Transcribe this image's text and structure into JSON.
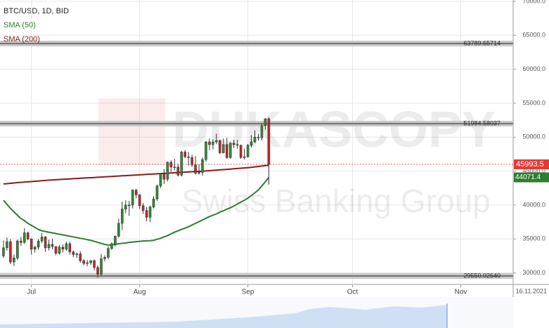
{
  "chart_data": {
    "type": "candlestick",
    "title": "BTC/USD, 1D, BID",
    "open": [
      32500,
      33700,
      34600,
      31600,
      32200,
      34700,
      34500,
      35900,
      35000,
      33500,
      33800,
      34700,
      35300,
      33700,
      34200,
      33900,
      32900,
      33800,
      33500,
      34300,
      33100,
      32700,
      32800,
      31800,
      31400,
      31500,
      31800,
      30800,
      29800,
      32100,
      32300,
      33600,
      34300,
      35400,
      37300,
      39400,
      40000,
      40000,
      42200,
      41500,
      39900,
      39200,
      38200,
      39700,
      40900,
      42800,
      44600,
      43800,
      46300,
      45600,
      45600,
      44400,
      47800,
      47100,
      47000,
      45900,
      44700,
      44800,
      46700,
      49300,
      48900,
      49300,
      49500,
      47700,
      48900,
      47000,
      49100,
      48900,
      48800,
      47000,
      47100,
      48800,
      49300,
      50000,
      49900,
      51700,
      52700
    ],
    "high": [
      34800,
      35200,
      35000,
      32700,
      34900,
      35300,
      36600,
      36100,
      35100,
      34000,
      35000,
      35900,
      35400,
      34900,
      35000,
      33900,
      34100,
      34200,
      34600,
      34600,
      33300,
      33000,
      33200,
      32000,
      31900,
      31900,
      32000,
      31100,
      32800,
      32600,
      33900,
      34500,
      35500,
      38000,
      40500,
      40700,
      40600,
      42300,
      42400,
      41600,
      40300,
      39700,
      39900,
      41300,
      43000,
      44700,
      45300,
      46400,
      46600,
      46800,
      46100,
      48000,
      48100,
      47800,
      47400,
      47200,
      46000,
      47000,
      49400,
      49800,
      49700,
      50500,
      49600,
      49800,
      49900,
      49300,
      49600,
      49600,
      48900,
      48300,
      49000,
      50300,
      51000,
      50500,
      52000,
      52800,
      52900
    ],
    "low": [
      32200,
      33300,
      31300,
      31000,
      31900,
      34000,
      34300,
      34800,
      32700,
      33000,
      33400,
      34400,
      33100,
      33300,
      33500,
      32600,
      32700,
      33000,
      33300,
      32700,
      32300,
      32200,
      31500,
      31100,
      31000,
      31200,
      30400,
      29300,
      29500,
      31700,
      32000,
      33400,
      33900,
      35200,
      36300,
      38800,
      38400,
      39500,
      41000,
      39400,
      38700,
      37600,
      37500,
      39500,
      40600,
      42500,
      43100,
      43500,
      44900,
      45100,
      44200,
      44200,
      46900,
      45800,
      45600,
      44500,
      44500,
      44300,
      46400,
      48100,
      48200,
      49000,
      47500,
      47600,
      46800,
      46800,
      48400,
      48300,
      46800,
      46700,
      47000,
      48500,
      49100,
      49500,
      49500,
      51100,
      43000
    ],
    "close": [
      33700,
      34600,
      31600,
      32200,
      34700,
      34500,
      35900,
      35000,
      33500,
      33800,
      34700,
      35300,
      33700,
      34200,
      33900,
      32900,
      33800,
      33500,
      34300,
      33100,
      32700,
      32800,
      31800,
      31400,
      31500,
      31800,
      30800,
      29800,
      32100,
      32300,
      33600,
      34300,
      35400,
      37300,
      39400,
      40000,
      40000,
      42200,
      41500,
      39900,
      39200,
      38200,
      39700,
      40900,
      42800,
      44600,
      43800,
      46300,
      45600,
      45600,
      44400,
      47800,
      47100,
      47000,
      45900,
      44700,
      44800,
      46700,
      49300,
      48900,
      49300,
      49500,
      47700,
      48900,
      47000,
      49100,
      48900,
      48800,
      47000,
      47100,
      48800,
      49300,
      50000,
      49900,
      51700,
      52700,
      45993.5
    ],
    "up_color": "#2f8f2f",
    "down_color": "#c62828",
    "price_color": "#e53935",
    "series": [
      {
        "name": "SMA (50)",
        "color": "#2e7d32",
        "values": [
          40700,
          40100,
          39500,
          39000,
          38500,
          38000,
          37700,
          37300,
          37000,
          36700,
          36400,
          36200,
          36100,
          36000,
          35900,
          35800,
          35700,
          35600,
          35500,
          35400,
          35300,
          35200,
          35100,
          35000,
          34900,
          34800,
          34650,
          34500,
          34350,
          34200,
          34100,
          34150,
          34200,
          34300,
          34350,
          34400,
          34500,
          34550,
          34600,
          34650,
          34700,
          34720,
          34750,
          34800,
          34950,
          35100,
          35300,
          35500,
          35750,
          36000,
          36200,
          36400,
          36600,
          36800,
          37050,
          37300,
          37550,
          37800,
          38050,
          38300,
          38500,
          38700,
          38950,
          39150,
          39400,
          39600,
          39850,
          40150,
          40450,
          40700,
          41000,
          41400,
          41800,
          42200,
          42800,
          43400,
          44071.4
        ]
      },
      {
        "name": "SMA (200)",
        "color": "#8b1a1a",
        "values": [
          43100,
          43150,
          43200,
          43250,
          43300,
          43340,
          43380,
          43420,
          43460,
          43500,
          43540,
          43580,
          43620,
          43660,
          43700,
          43730,
          43760,
          43790,
          43820,
          43850,
          43880,
          43910,
          43940,
          43970,
          44000,
          44030,
          44060,
          44090,
          44120,
          44150,
          44180,
          44210,
          44240,
          44270,
          44300,
          44330,
          44360,
          44390,
          44420,
          44450,
          44480,
          44510,
          44540,
          44570,
          44600,
          44630,
          44660,
          44690,
          44720,
          44750,
          44780,
          44810,
          44840,
          44870,
          44900,
          44930,
          44960,
          44990,
          45020,
          45060,
          45100,
          45140,
          45180,
          45220,
          45260,
          45300,
          45340,
          45380,
          45420,
          45460,
          45500,
          45560,
          45620,
          45680,
          45740,
          45800,
          45860
        ]
      }
    ],
    "levels": [
      63789.65714,
      51984.58037,
      {
        "value": 29550.0264,
        "label": "29550.02640"
      }
    ],
    "ylim": [
      28300,
      70200
    ],
    "yticks": [
      {
        "value": 30000,
        "label": "30000.0"
      },
      {
        "value": 35000,
        "label": "35000.0"
      },
      {
        "value": 40000,
        "label": "40000.0"
      },
      {
        "value": 45000,
        "label": "45000.0"
      },
      {
        "value": 50000,
        "label": "50000.0"
      },
      {
        "value": 55000,
        "label": "55000.0"
      },
      {
        "value": 60000,
        "label": "60000.0"
      },
      {
        "value": 65000,
        "label": "65000.0"
      },
      {
        "value": 70000,
        "label": "70000.0"
      }
    ],
    "xlim": [
      -1,
      146
    ],
    "xticks": [
      {
        "value": 8,
        "label": "Jul"
      },
      {
        "value": 39,
        "label": "Aug"
      },
      {
        "value": 70,
        "label": "Sep"
      },
      {
        "value": 100,
        "label": "Oct"
      },
      {
        "value": 131,
        "label": "Nov"
      }
    ],
    "grid": true,
    "date_label": "16.11.2021",
    "watermark": [
      "DUKASCOPY",
      "Swiss Banking Group"
    ]
  }
}
